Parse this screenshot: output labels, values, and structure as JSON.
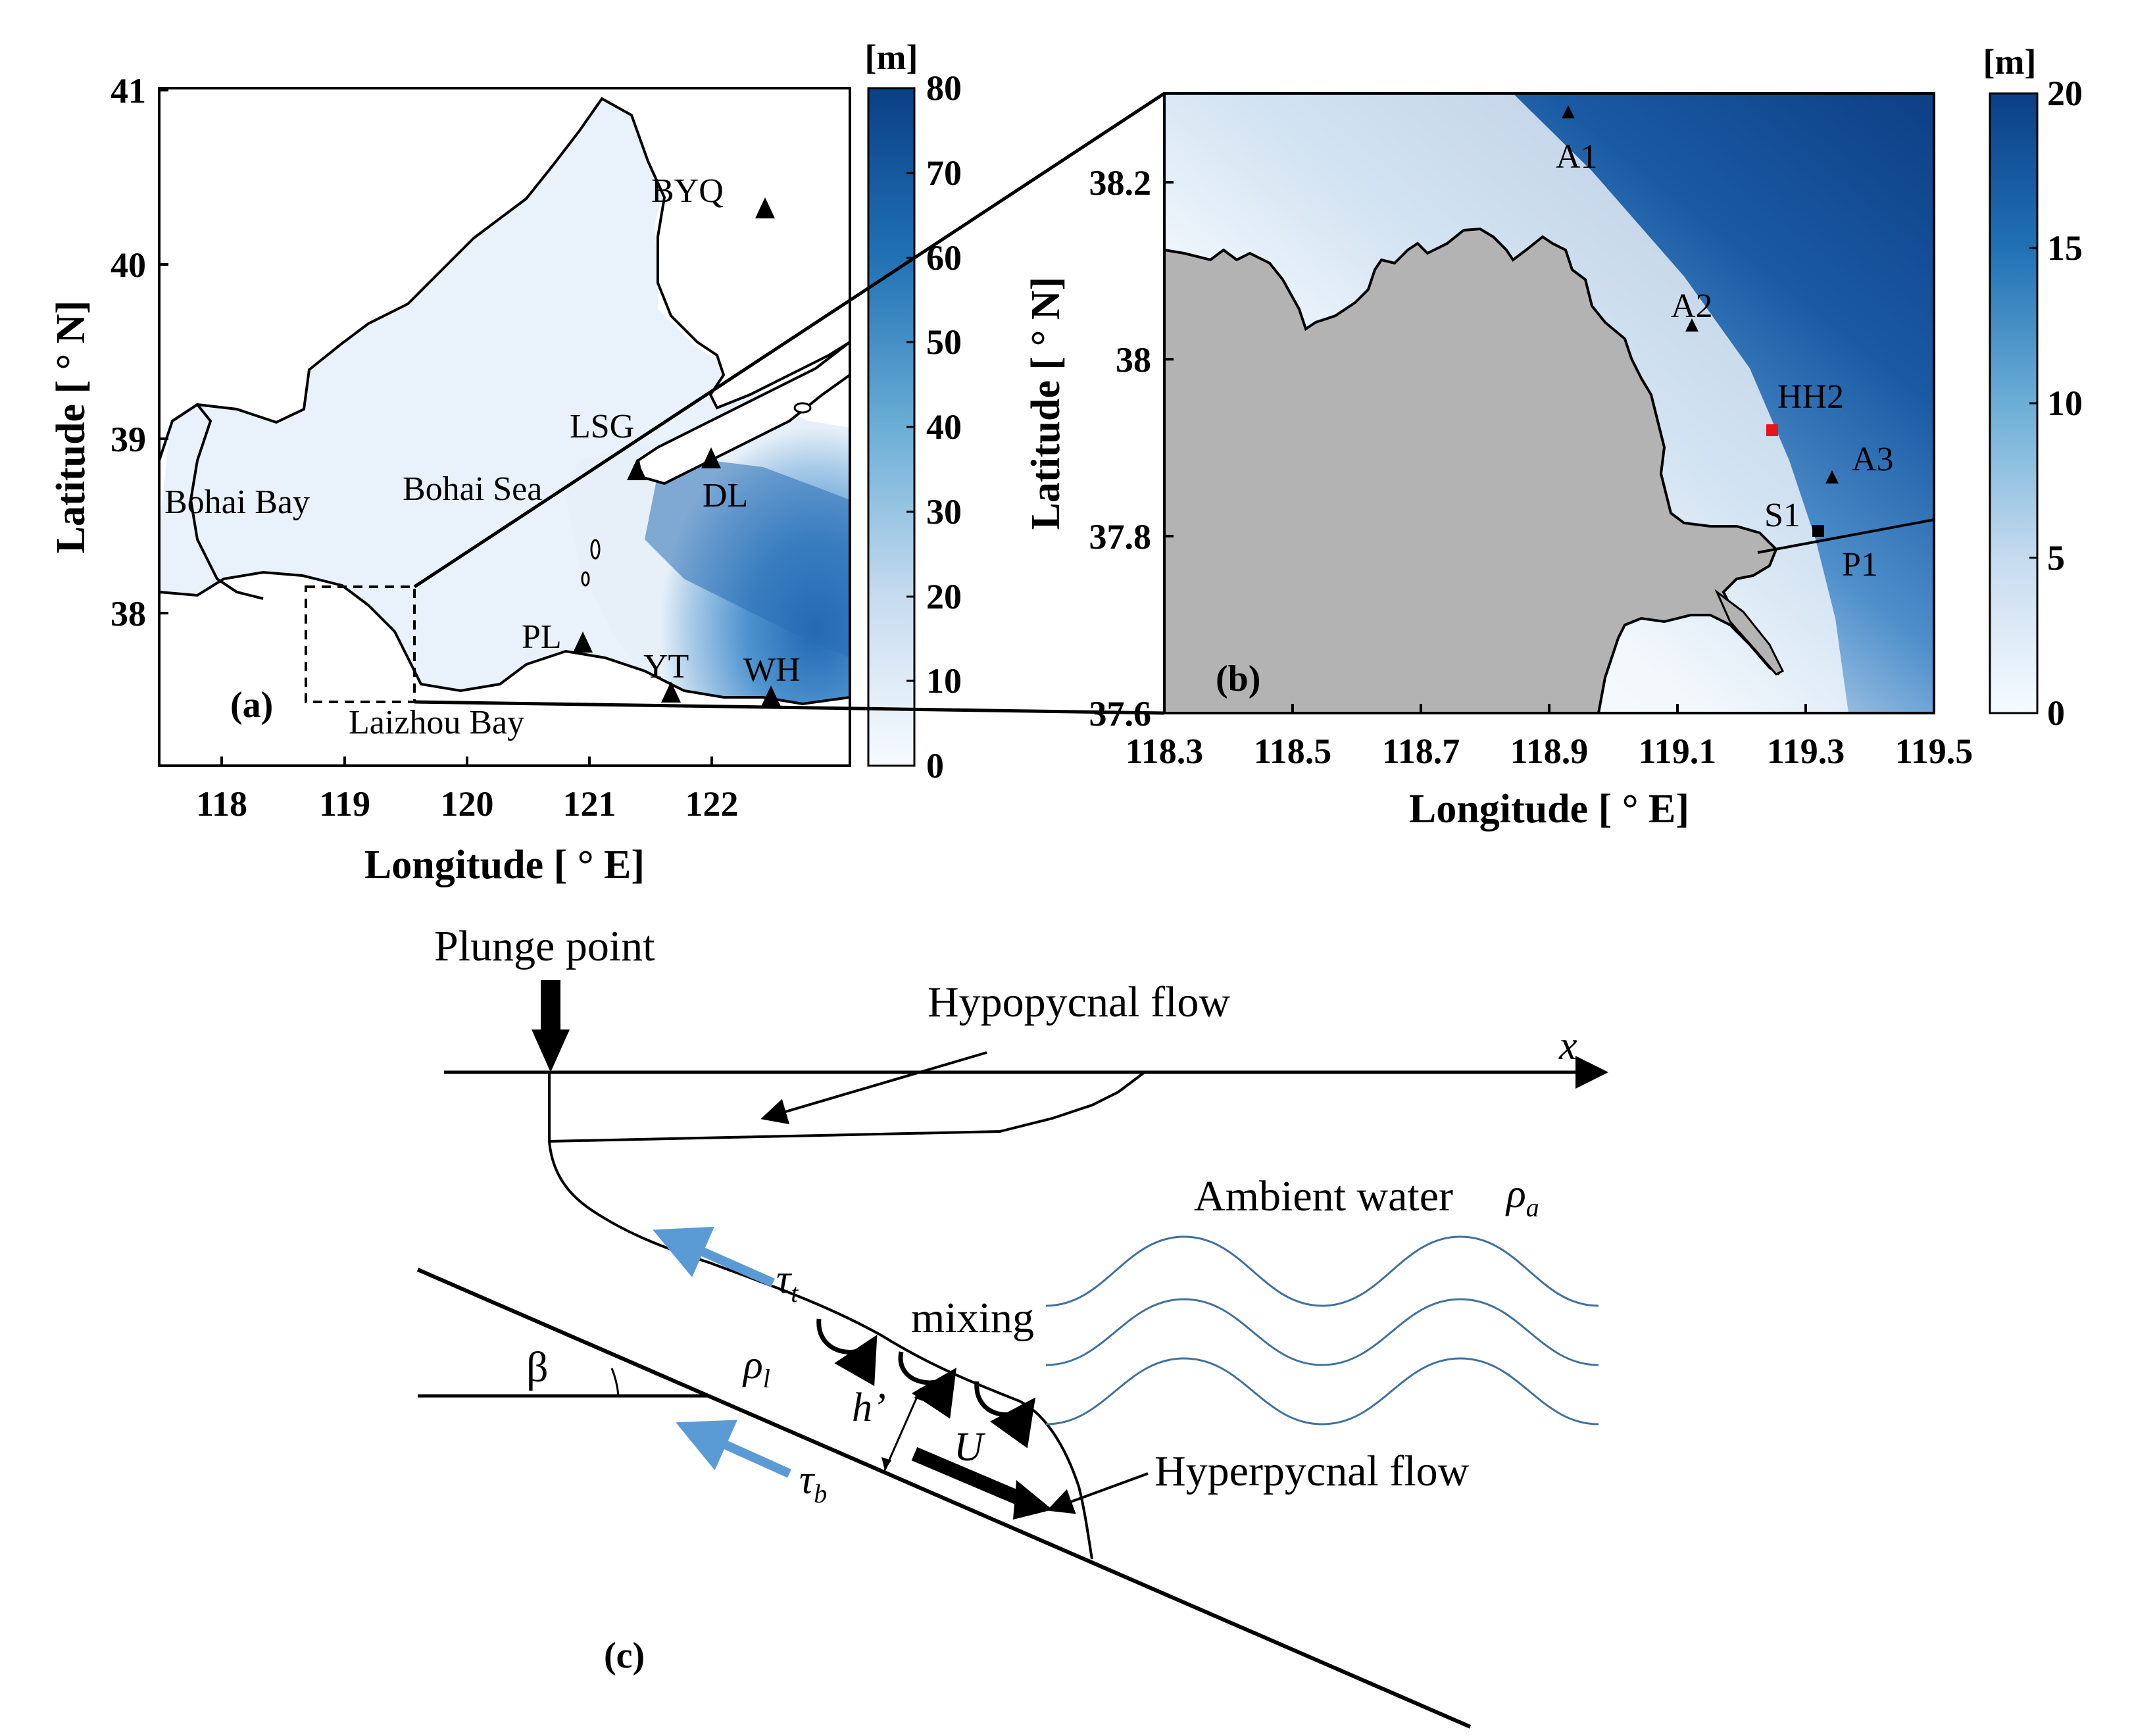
{
  "panel_a": {
    "label": "(a)",
    "xlabel": "Longitude [ ° E]",
    "ylabel": "Latitude [ ° N]",
    "xticks": [
      "118",
      "119",
      "120",
      "121",
      "122"
    ],
    "yticks": [
      "41",
      "40",
      "39",
      "38"
    ],
    "colorbar": {
      "unit": "[m]",
      "range": [
        0,
        80
      ],
      "ticks": [
        "80",
        "70",
        "60",
        "50",
        "40",
        "30",
        "20",
        "10",
        "0"
      ],
      "color_low": "#ffffff",
      "color_high": "#0b3f86"
    },
    "land_color": "#ffffff",
    "regions": [
      "Bohai Bay",
      "Bohai Sea",
      "Laizhou Bay"
    ],
    "stations": [
      "BYQ",
      "LSG",
      "DL",
      "PL",
      "YT",
      "WH"
    ]
  },
  "panel_b": {
    "label": "(b)",
    "xlabel": "Longitude [ ° E]",
    "ylabel": "Latitude [ ° N]",
    "xticks": [
      "118.3",
      "118.5",
      "118.7",
      "118.9",
      "119.1",
      "119.3",
      "119.5"
    ],
    "yticks": [
      "38.2",
      "38",
      "37.8",
      "37.6"
    ],
    "colorbar": {
      "unit": "[m]",
      "range": [
        0,
        20
      ],
      "ticks": [
        "20",
        "15",
        "10",
        "5",
        "0"
      ],
      "color_low": "#ffffff",
      "color_high": "#0b3f86"
    },
    "land_color": "#b3b3b3",
    "stations": [
      {
        "name": "A1",
        "marker": "triangle",
        "color": "#000000"
      },
      {
        "name": "A2",
        "marker": "triangle",
        "color": "#000000"
      },
      {
        "name": "HH2",
        "marker": "square",
        "color": "#e8141b"
      },
      {
        "name": "A3",
        "marker": "triangle",
        "color": "#000000"
      },
      {
        "name": "S1",
        "marker": "square",
        "color": "#000000"
      },
      {
        "name": "P1",
        "marker": "line",
        "color": "#000000"
      }
    ]
  },
  "panel_c": {
    "label": "(c)",
    "plunge_point": "Plunge point",
    "hypopycnal": "Hypopycnal flow",
    "x_axis": "x",
    "ambient": "Ambient water",
    "rho_a": "ρ",
    "rho_a_sub": "a",
    "mixing": "mixing",
    "tau_t": "τ",
    "tau_t_sub": "t",
    "tau_b": "τ",
    "tau_b_sub": "b",
    "beta": "β",
    "rho_l": "ρ",
    "rho_l_sub": "l",
    "h_prime": "h’",
    "velocity": "U",
    "hyperpycnal": "Hyperpycnal flow",
    "arrow_color": "#5b9bd5",
    "wave_color": "#41719c"
  }
}
